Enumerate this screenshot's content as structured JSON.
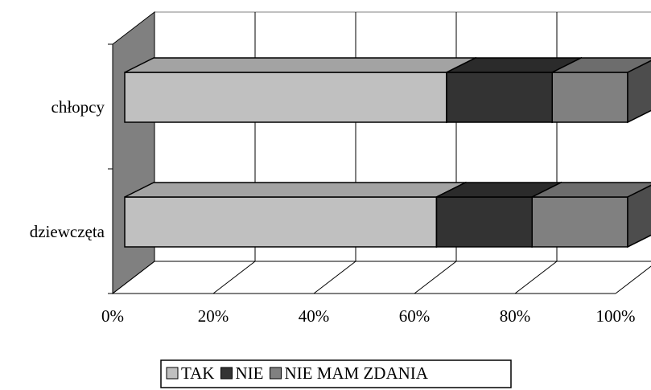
{
  "chart_data": {
    "type": "bar",
    "orientation": "horizontal",
    "stacked": true,
    "categories": [
      "chłopcy",
      "dziewczęta"
    ],
    "series": [
      {
        "name": "TAK",
        "color": "#c0c0c0",
        "values": [
          64,
          62
        ]
      },
      {
        "name": "NIE",
        "color": "#333333",
        "values": [
          21,
          19
        ]
      },
      {
        "name": "NIE MAM ZDANIA",
        "color": "#808080",
        "values": [
          15,
          19
        ]
      }
    ],
    "xlim": [
      0,
      100
    ],
    "xticks": [
      {
        "value": 0,
        "label": "0%"
      },
      {
        "value": 20,
        "label": "20%"
      },
      {
        "value": 40,
        "label": "40%"
      },
      {
        "value": 60,
        "label": "60%"
      },
      {
        "value": 80,
        "label": "80%"
      },
      {
        "value": 100,
        "label": "100%"
      }
    ],
    "grid": true,
    "legend": "bottom"
  }
}
